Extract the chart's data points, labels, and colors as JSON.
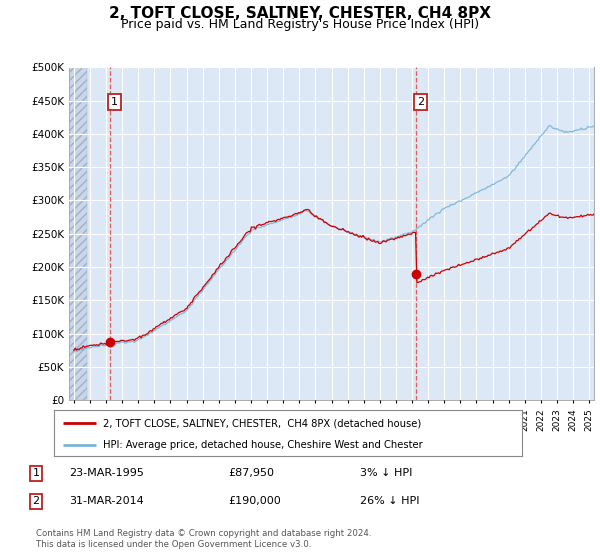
{
  "title": "2, TOFT CLOSE, SALTNEY, CHESTER, CH4 8PX",
  "subtitle": "Price paid vs. HM Land Registry's House Price Index (HPI)",
  "ylim": [
    0,
    500000
  ],
  "yticks": [
    0,
    50000,
    100000,
    150000,
    200000,
    250000,
    300000,
    350000,
    400000,
    450000,
    500000
  ],
  "ytick_labels": [
    "£0",
    "£50K",
    "£100K",
    "£150K",
    "£200K",
    "£250K",
    "£300K",
    "£350K",
    "£400K",
    "£450K",
    "£500K"
  ],
  "xlim_start": 1992.7,
  "xlim_end": 2025.3,
  "sale1_date": 1995.22,
  "sale1_price": 87950,
  "sale1_label": "1",
  "sale2_date": 2014.24,
  "sale2_price": 190000,
  "sale2_label": "2",
  "hpi_color": "#7ab4d8",
  "price_color": "#cc0000",
  "sale_dot_color": "#cc0000",
  "bg_color": "#dce8f5",
  "hatch_color": "#c0cce0",
  "grid_color": "#ffffff",
  "legend_line1": "2, TOFT CLOSE, SALTNEY, CHESTER,  CH4 8PX (detached house)",
  "legend_line2": "HPI: Average price, detached house, Cheshire West and Chester",
  "table_row1_num": "1",
  "table_row1_date": "23-MAR-1995",
  "table_row1_price": "£87,950",
  "table_row1_hpi": "3% ↓ HPI",
  "table_row2_num": "2",
  "table_row2_date": "31-MAR-2014",
  "table_row2_price": "£190,000",
  "table_row2_hpi": "26% ↓ HPI",
  "footnote": "Contains HM Land Registry data © Crown copyright and database right 2024.\nThis data is licensed under the Open Government Licence v3.0.",
  "title_fontsize": 11,
  "subtitle_fontsize": 9
}
